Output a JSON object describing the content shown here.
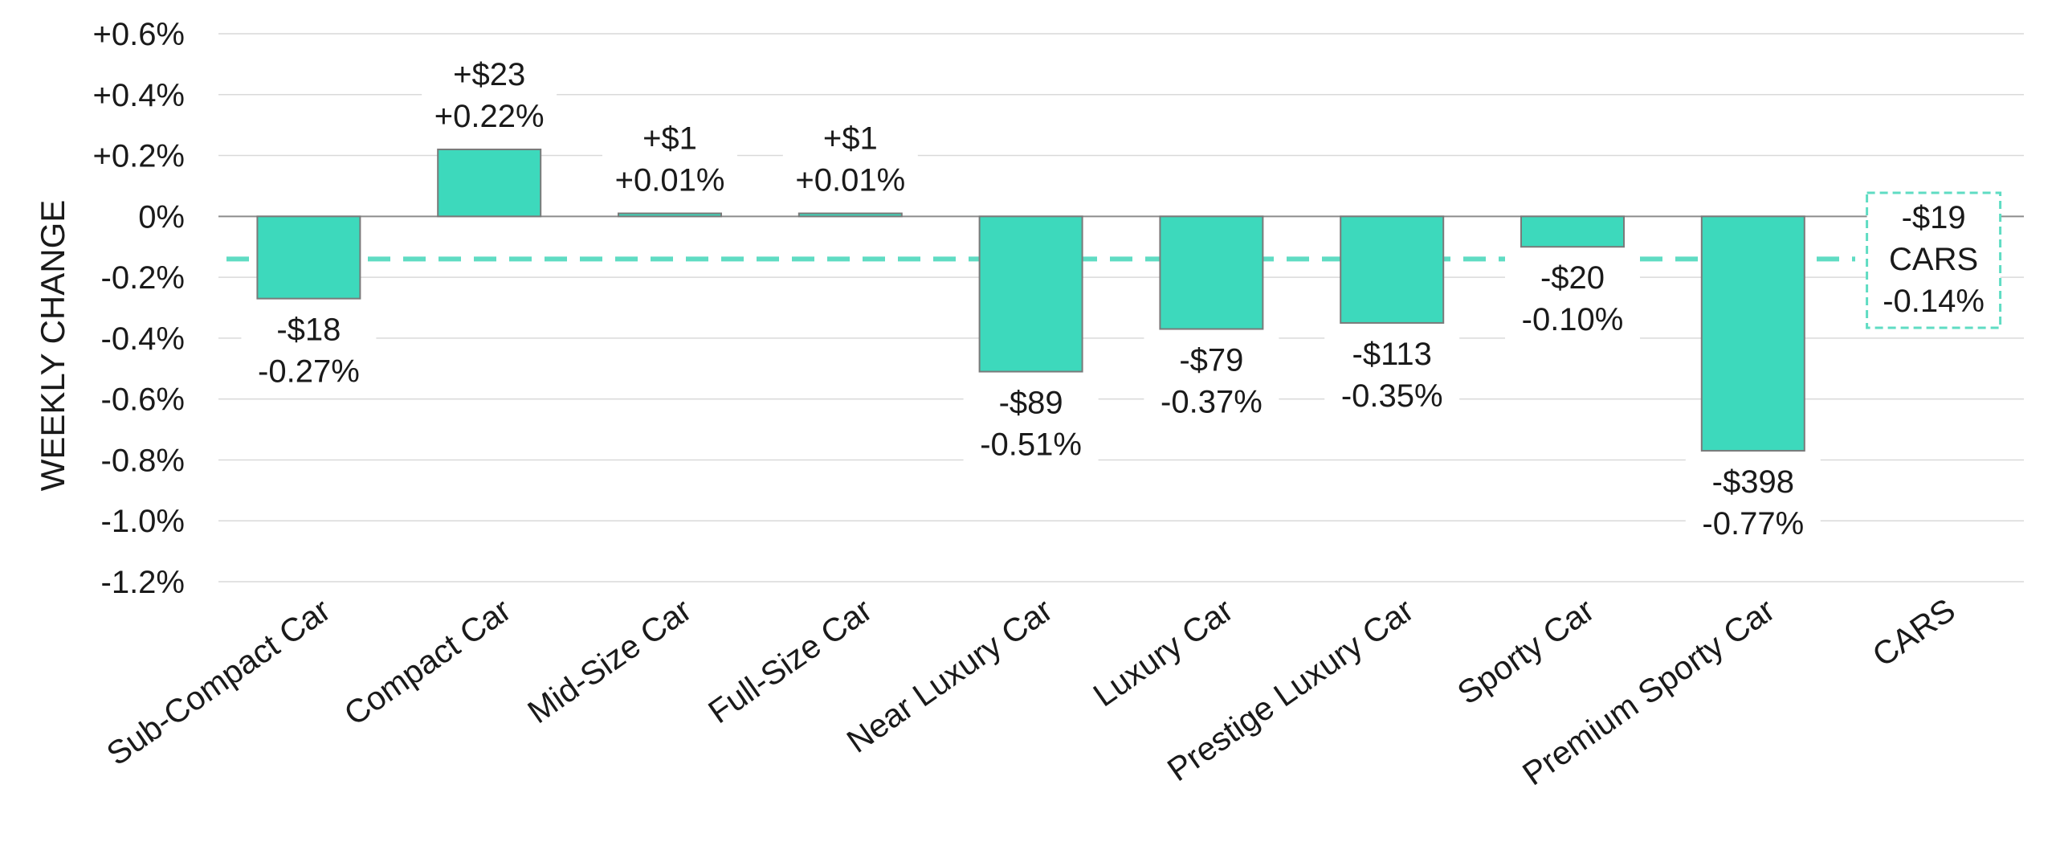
{
  "chart_data": {
    "type": "bar",
    "title": "",
    "xlabel": "",
    "ylabel": "WEEKLY CHANGE",
    "ylim": [
      -1.2,
      0.6
    ],
    "yticks": [
      "+0.6%",
      "+0.4%",
      "+0.2%",
      "0%",
      "-0.2%",
      "-0.4%",
      "-0.6%",
      "-0.8%",
      "-1.0%",
      "-1.2%"
    ],
    "ytick_values": [
      0.6,
      0.4,
      0.2,
      0,
      -0.2,
      -0.4,
      -0.6,
      -0.8,
      -1.0,
      -1.2
    ],
    "categories": [
      "Sub-Compact Car",
      "Compact Car",
      "Mid-Size Car",
      "Full-Size Car",
      "Near Luxury Car",
      "Luxury Car",
      "Prestige Luxury Car",
      "Sporty Car",
      "Premium Sporty Car",
      "CARS"
    ],
    "values": [
      -0.27,
      0.22,
      0.01,
      0.01,
      -0.51,
      -0.37,
      -0.35,
      -0.1,
      -0.77,
      null
    ],
    "dollar_labels": [
      "-$18",
      "+$23",
      "+$1",
      "+$1",
      "-$89",
      "-$79",
      "-$113",
      "-$20",
      "-$398"
    ],
    "percent_labels": [
      "-0.27%",
      "+0.22%",
      "+0.01%",
      "+0.01%",
      "-0.51%",
      "-0.37%",
      "-0.35%",
      "-0.10%",
      "-0.77%"
    ],
    "reference_line": {
      "value": -0.14,
      "label_dollar": "-$19",
      "label_name": "CARS",
      "label_percent": "-0.14%"
    },
    "grid": true,
    "colors": {
      "bar": "#3dd9bc",
      "bar_edge": "#7a7a7a",
      "reference": "#5fdcc3",
      "grid": "#d9d9d9",
      "zero_line": "#8c8c8c"
    }
  }
}
